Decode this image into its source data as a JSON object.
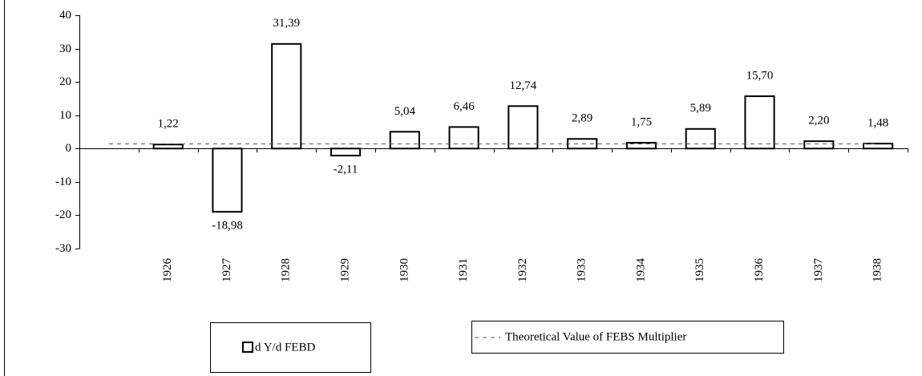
{
  "chart_data": {
    "type": "bar",
    "categories": [
      null,
      "1926",
      "1927",
      "1928",
      "1929",
      "1930",
      "1931",
      "1932",
      "1933",
      "1934",
      "1935",
      "1936",
      "1937",
      "1938"
    ],
    "series": [
      {
        "name": "d Y/d FEBD",
        "color": "#ffffff",
        "type": "bar",
        "values": [
          null,
          1.22,
          -18.98,
          31.39,
          -2.11,
          5.04,
          6.46,
          12.74,
          2.89,
          1.75,
          5.89,
          15.7,
          2.2,
          1.48
        ],
        "value_labels": [
          null,
          "1,22",
          "-18,98",
          "31,39",
          "-2,11",
          "5,04",
          "6,46",
          "12,74",
          "2,89",
          "1,75",
          "5,89",
          "15,70",
          "2,20",
          "1,48"
        ]
      },
      {
        "name": "Theoretical Value of FEBS Multiplier",
        "color": "#555555",
        "type": "line",
        "values": [
          1.4,
          1.4,
          1.4,
          1.4,
          1.4,
          1.4,
          1.4,
          1.4,
          1.4,
          1.4,
          1.4,
          1.4,
          1.4,
          1.4
        ]
      }
    ],
    "ylim": [
      -30,
      40
    ],
    "yticks": [
      -30,
      -20,
      -10,
      0,
      10,
      20,
      30,
      40
    ],
    "grid": false
  }
}
